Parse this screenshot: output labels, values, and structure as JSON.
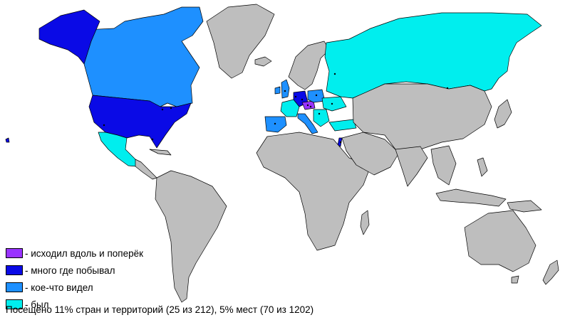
{
  "colors": {
    "land": "#bebebe",
    "walked": "#9933ff",
    "many": "#0a0ae6",
    "some": "#1e90ff",
    "been": "#00eeee",
    "ocean": "#ffffff"
  },
  "legend": [
    {
      "label": "- исходил вдоль и поперёк",
      "color": "#9933ff"
    },
    {
      "label": "- много где побывал",
      "color": "#0a0ae6"
    },
    {
      "label": "- кое-что видел",
      "color": "#1e90ff"
    },
    {
      "label": "- был",
      "color": "#00eeee"
    }
  ],
  "summary": "Посещено 11% стран и территорий (25 из 212), 5% мест (70 из 1202)",
  "statistics": {
    "countries_visited": 25,
    "countries_total": 212,
    "countries_percent": 11,
    "places_visited": 70,
    "places_total": 1202,
    "places_percent": 5
  }
}
